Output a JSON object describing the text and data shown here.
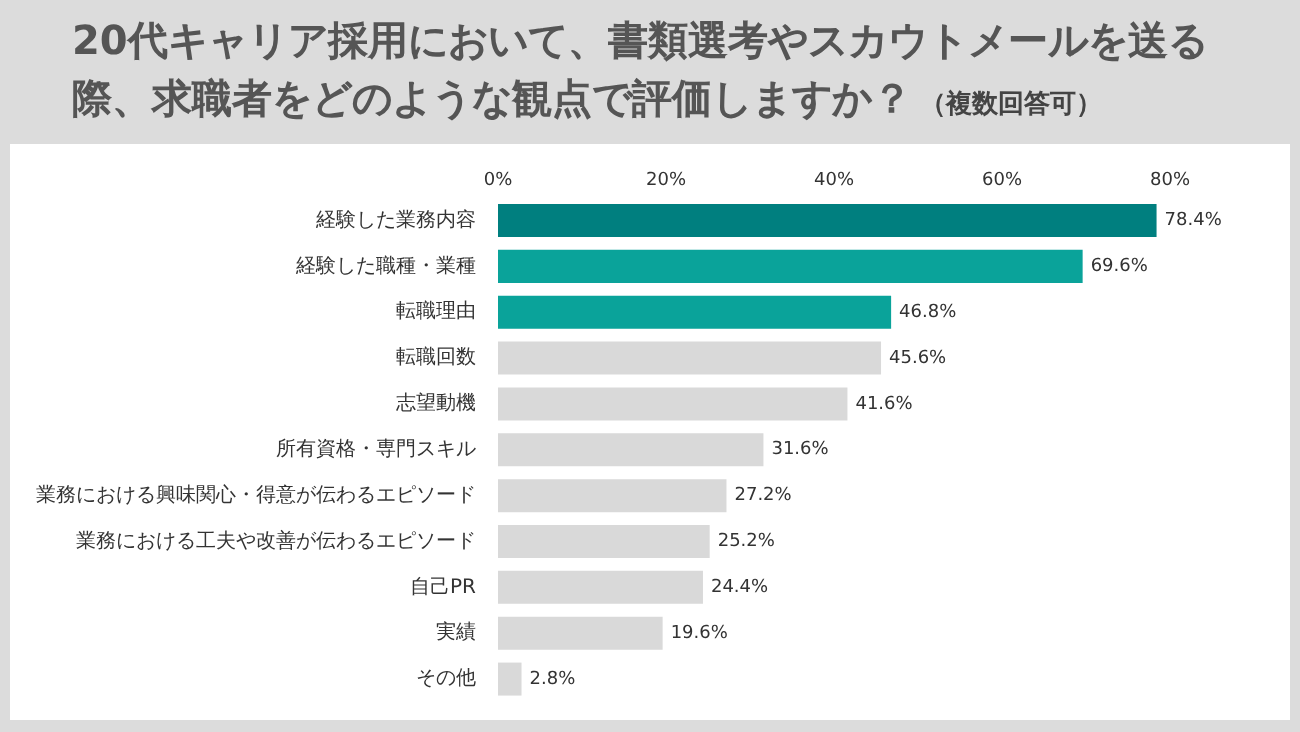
{
  "chart_data": {
    "type": "bar",
    "orientation": "horizontal",
    "title": "20代キャリア採用において、書類選考やスカウトメールを送る際、求職者をどのような観点で評価しますか？",
    "subtitle": "（複数回答可）",
    "categories": [
      "経験した業務内容",
      "経験した職種・業種",
      "転職理由",
      "転職回数",
      "志望動機",
      "所有資格・専門スキル",
      "業務における興味関心・得意が伝わるエピソード",
      "業務における工夫や改善が伝わるエピソード",
      "自己PR",
      "実績",
      "その他"
    ],
    "values": [
      78.4,
      69.6,
      46.8,
      45.6,
      41.6,
      31.6,
      27.2,
      25.2,
      24.4,
      19.6,
      2.8
    ],
    "colors": [
      "#007f7f",
      "#0aa39a",
      "#0aa39a",
      "#d9d9d9",
      "#d9d9d9",
      "#d9d9d9",
      "#d9d9d9",
      "#d9d9d9",
      "#d9d9d9",
      "#d9d9d9",
      "#d9d9d9"
    ],
    "value_labels": [
      "78.4%",
      "69.6%",
      "46.8%",
      "45.6%",
      "41.6%",
      "31.6%",
      "27.2%",
      "25.2%",
      "24.4%",
      "19.6%",
      "2.8%"
    ],
    "xlim": [
      0,
      80
    ],
    "xticks": [
      {
        "value": 0,
        "label": "0%"
      },
      {
        "value": 20,
        "label": "20%"
      },
      {
        "value": 40,
        "label": "40%"
      },
      {
        "value": 60,
        "label": "60%"
      },
      {
        "value": 80,
        "label": "80%"
      }
    ],
    "grid": false,
    "legend": false
  }
}
